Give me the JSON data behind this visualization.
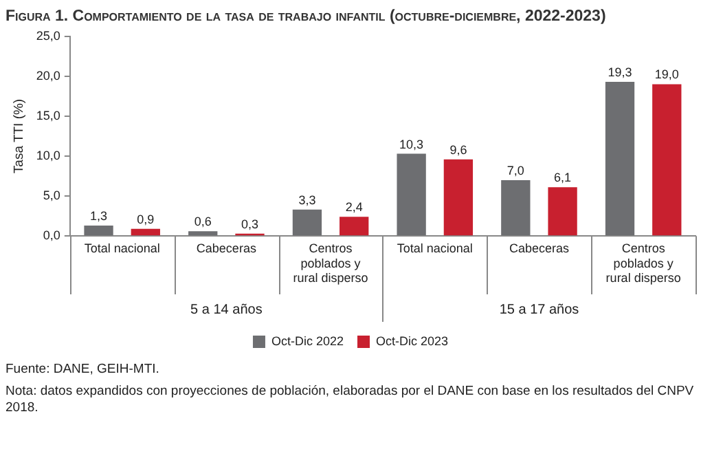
{
  "chart_data": {
    "type": "bar",
    "title": "Figura 1. Comportamiento de la tasa de trabajo infantil (octubre-diciembre, 2022-2023)",
    "ylabel": "Tasa TTI (%)",
    "categories": [
      "Total nacional",
      "Cabeceras",
      "Centros poblados y rural disperso",
      "Total nacional",
      "Cabeceras",
      "Centros poblados y rural disperso"
    ],
    "series": [
      {
        "name": "Oct-Dic 2022",
        "color": "#6d6e71",
        "values": [
          1.3,
          0.6,
          3.3,
          10.3,
          7.0,
          19.3
        ],
        "value_labels": [
          "1,3",
          "0,6",
          "3,3",
          "10,3",
          "7,0",
          "19,3"
        ]
      },
      {
        "name": "Oct-Dic 2023",
        "color": "#c8202f",
        "values": [
          0.9,
          0.3,
          2.4,
          9.6,
          6.1,
          19.0
        ],
        "value_labels": [
          "0,9",
          "0,3",
          "2,4",
          "9,6",
          "6,1",
          "19,0"
        ]
      }
    ],
    "ylim": [
      0,
      25
    ],
    "yticks": [
      {
        "value": 0,
        "label": "0,0"
      },
      {
        "value": 5,
        "label": "5,0"
      },
      {
        "value": 10,
        "label": "10,0"
      },
      {
        "value": 15,
        "label": "15,0"
      },
      {
        "value": 20,
        "label": "20,0"
      },
      {
        "value": 25,
        "label": "25,0"
      }
    ],
    "legend": "bottom",
    "annotations": [
      "5 a 14 años",
      "15 a 17 años",
      "Fuente: DANE, GEIH-MTI.",
      "Nota: datos expandidos con proyecciones de población, elaboradas por el DANE con base en los resultados del CNPV 2018."
    ]
  }
}
